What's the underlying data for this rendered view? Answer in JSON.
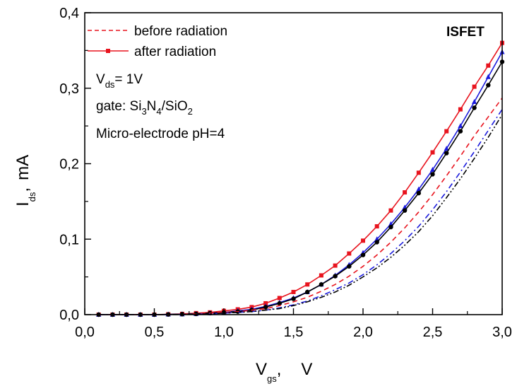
{
  "chart_data": {
    "type": "line",
    "xlabel": "V",
    "xlabel_sub": "gs",
    "xlabel_unit": "V",
    "ylabel": "I",
    "ylabel_sub": "ds",
    "ylabel_unit": "mA",
    "xlim": [
      0.0,
      3.0
    ],
    "ylim": [
      0.0,
      0.4
    ],
    "x_ticks": [
      "0,0",
      "0,5",
      "1,0",
      "1,5",
      "2,0",
      "2,5",
      "3,0"
    ],
    "y_ticks": [
      "0,0",
      "0,1",
      "0,2",
      "0,3",
      "0,4"
    ],
    "legend": {
      "placement": "top-left",
      "entries": [
        {
          "label": "before radiation",
          "style": "dashed"
        },
        {
          "label": "after radiation",
          "style": "solid-square"
        }
      ]
    },
    "annotations": {
      "corner_label": "ISFET",
      "vds_prefix": "V",
      "vds_sub": "ds",
      "vds_value": "= 1V",
      "gate_prefix": "gate: Si",
      "gate_sub1": "3",
      "gate_mid1": "N",
      "gate_sub2": "4",
      "gate_mid2": "/SiO",
      "gate_sub3": "2",
      "electrode": "Micro-electrode pH=4"
    },
    "x": [
      0.1,
      0.2,
      0.3,
      0.4,
      0.5,
      0.6,
      0.7,
      0.8,
      0.9,
      1.0,
      1.1,
      1.2,
      1.3,
      1.4,
      1.5,
      1.6,
      1.7,
      1.8,
      1.9,
      2.0,
      2.1,
      2.2,
      2.3,
      2.4,
      2.5,
      2.6,
      2.7,
      2.8,
      2.9,
      3.0
    ],
    "series": [
      {
        "name": "after radiation",
        "color": "#e8141e",
        "style": "solid",
        "marker": "square",
        "values": [
          0.0,
          0.0,
          0.0,
          0.0,
          0.0,
          0.0005,
          0.001,
          0.002,
          0.003,
          0.005,
          0.007,
          0.01,
          0.015,
          0.022,
          0.03,
          0.04,
          0.052,
          0.065,
          0.081,
          0.098,
          0.117,
          0.138,
          0.162,
          0.188,
          0.215,
          0.243,
          0.272,
          0.302,
          0.33,
          0.36
        ]
      },
      {
        "color": "#1a1adc",
        "style": "solid",
        "marker": "triangle",
        "values": [
          0.0,
          0.0,
          0.0,
          0.0,
          0.0,
          0.0003,
          0.0006,
          0.001,
          0.002,
          0.003,
          0.005,
          0.007,
          0.011,
          0.016,
          0.022,
          0.03,
          0.04,
          0.052,
          0.066,
          0.082,
          0.1,
          0.12,
          0.142,
          0.166,
          0.192,
          0.22,
          0.25,
          0.282,
          0.315,
          0.348
        ]
      },
      {
        "color": "#000000",
        "style": "solid",
        "marker": "circle",
        "values": [
          0.0,
          0.0,
          0.0,
          0.0,
          0.0,
          0.0003,
          0.0006,
          0.001,
          0.002,
          0.003,
          0.004,
          0.006,
          0.01,
          0.015,
          0.021,
          0.03,
          0.04,
          0.051,
          0.064,
          0.079,
          0.096,
          0.116,
          0.138,
          0.161,
          0.186,
          0.214,
          0.243,
          0.274,
          0.304,
          0.335
        ]
      },
      {
        "name": "before radiation",
        "color": "#e8141e",
        "style": "dashed",
        "marker": "none",
        "values": [
          0.0,
          0.0,
          0.0,
          0.0,
          0.0,
          0.0,
          0.0005,
          0.001,
          0.002,
          0.003,
          0.004,
          0.006,
          0.008,
          0.012,
          0.017,
          0.023,
          0.031,
          0.04,
          0.051,
          0.064,
          0.079,
          0.096,
          0.115,
          0.136,
          0.159,
          0.184,
          0.21,
          0.237,
          0.262,
          0.287
        ]
      },
      {
        "color": "#1a1adc",
        "style": "dashdot",
        "marker": "none",
        "values": [
          0.0,
          0.0,
          0.0,
          0.0,
          0.0,
          0.0,
          0.0003,
          0.0006,
          0.001,
          0.002,
          0.003,
          0.004,
          0.006,
          0.009,
          0.013,
          0.018,
          0.025,
          0.033,
          0.042,
          0.053,
          0.066,
          0.081,
          0.098,
          0.117,
          0.139,
          0.163,
          0.189,
          0.216,
          0.244,
          0.272
        ]
      },
      {
        "color": "#000000",
        "style": "dashdotdot",
        "marker": "none",
        "values": [
          0.0,
          0.0,
          0.0,
          0.0,
          0.0,
          0.0,
          0.0003,
          0.0006,
          0.001,
          0.002,
          0.003,
          0.004,
          0.006,
          0.008,
          0.012,
          0.017,
          0.023,
          0.03,
          0.039,
          0.05,
          0.062,
          0.076,
          0.092,
          0.11,
          0.131,
          0.155,
          0.18,
          0.207,
          0.235,
          0.265
        ]
      }
    ]
  }
}
